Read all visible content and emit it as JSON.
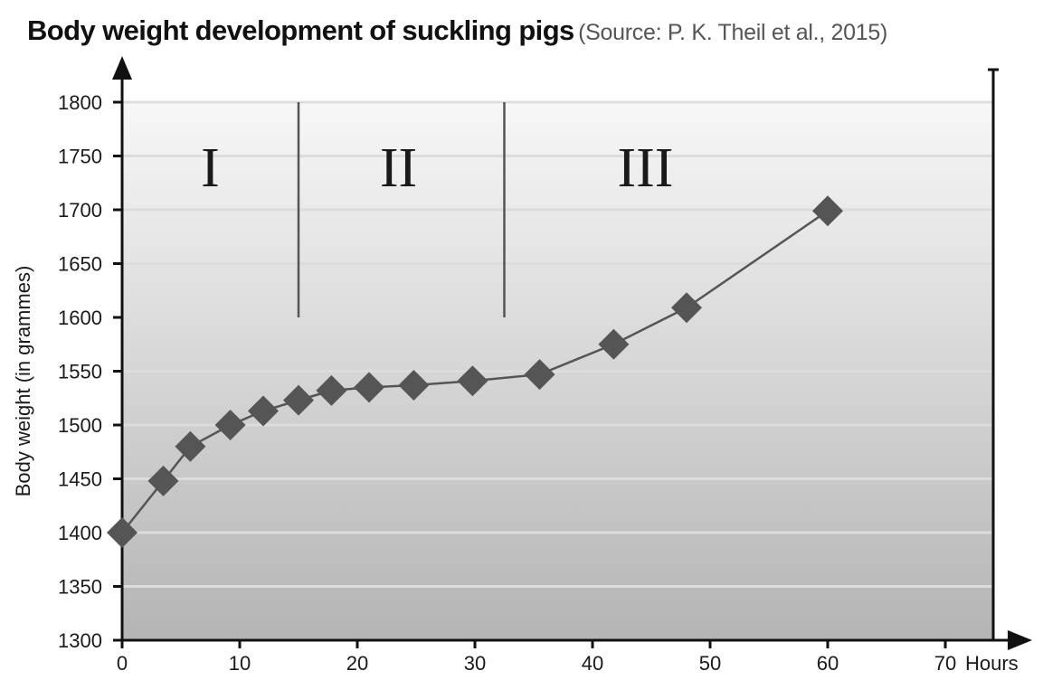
{
  "title": "Body weight development of suckling pigs",
  "source": "(Source: P. K. Theil et al., 2015)",
  "chart_data": {
    "type": "line",
    "ylabel": "Body weight (in grammes)",
    "xlabel": "Hours",
    "xlim": [
      0,
      74
    ],
    "ylim": [
      1300,
      1800
    ],
    "x_ticks": [
      0,
      10,
      20,
      30,
      40,
      50,
      60,
      70
    ],
    "y_ticks": [
      1300,
      1350,
      1400,
      1450,
      1500,
      1550,
      1600,
      1650,
      1700,
      1750,
      1800
    ],
    "grid": true,
    "series": [
      {
        "marker": "diamond",
        "color": "#555555",
        "points": [
          {
            "x": 0,
            "y": 1400
          },
          {
            "x": 3.5,
            "y": 1448
          },
          {
            "x": 5.8,
            "y": 1480
          },
          {
            "x": 9.2,
            "y": 1500
          },
          {
            "x": 12,
            "y": 1513
          },
          {
            "x": 15,
            "y": 1523
          },
          {
            "x": 17.8,
            "y": 1532
          },
          {
            "x": 21,
            "y": 1535
          },
          {
            "x": 24.8,
            "y": 1537
          },
          {
            "x": 29.8,
            "y": 1541
          },
          {
            "x": 35.5,
            "y": 1547
          },
          {
            "x": 41.8,
            "y": 1575
          },
          {
            "x": 48,
            "y": 1609
          },
          {
            "x": 60,
            "y": 1699
          }
        ]
      }
    ],
    "phases": [
      {
        "label": "I",
        "x_center": 7.5,
        "y": 1722
      },
      {
        "label": "II",
        "x_center": 23.5,
        "y": 1722
      },
      {
        "label": "III",
        "x_center": 44.5,
        "y": 1722
      }
    ],
    "phase_dividers": [
      {
        "x": 15,
        "y_from": 1600,
        "y_to": 1800
      },
      {
        "x": 32.5,
        "y_from": 1600,
        "y_to": 1800
      }
    ]
  }
}
